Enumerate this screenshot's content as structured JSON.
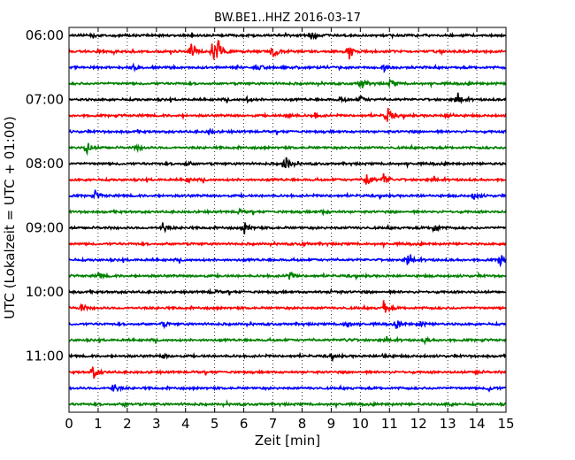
{
  "chart_data": {
    "type": "line",
    "title": "BW.BE1..HHZ 2016-03-17",
    "xlabel": "Zeit  [min]",
    "ylabel": "UTC (Lokalzeit = UTC + 01:00)",
    "xlim": [
      0,
      15
    ],
    "x_ticks": [
      "0",
      "1",
      "2",
      "3",
      "4",
      "5",
      "6",
      "7",
      "8",
      "9",
      "10",
      "11",
      "12",
      "13",
      "14",
      "15"
    ],
    "y_tick_labels": [
      "06:00",
      "07:00",
      "08:00",
      "09:00",
      "10:00",
      "11:00"
    ],
    "grid": "vertical dotted",
    "trace_colors": [
      "#000000",
      "#ff0000",
      "#0000ff",
      "#008000"
    ],
    "traces": [
      {
        "start": "06:00",
        "events": [
          [
            0.8,
            0.3
          ],
          [
            8.3,
            0.5
          ]
        ]
      },
      {
        "start": "06:15",
        "events": [
          [
            4.2,
            1.2
          ],
          [
            4.9,
            1.6
          ],
          [
            5.1,
            1.4
          ],
          [
            7.0,
            0.9
          ],
          [
            9.6,
            1.0
          ]
        ]
      },
      {
        "start": "06:30",
        "events": [
          [
            2.2,
            0.3
          ],
          [
            6.5,
            0.3
          ],
          [
            10.8,
            0.4
          ]
        ]
      },
      {
        "start": "06:45",
        "events": [
          [
            10.0,
            0.9
          ],
          [
            11.0,
            0.5
          ]
        ]
      },
      {
        "start": "07:00",
        "events": [
          [
            6.1,
            0.3
          ],
          [
            9.3,
            0.4
          ],
          [
            10.0,
            0.4
          ],
          [
            13.3,
            0.6
          ]
        ]
      },
      {
        "start": "07:15",
        "events": [
          [
            7.5,
            0.5
          ],
          [
            8.4,
            0.4
          ],
          [
            10.9,
            1.4
          ],
          [
            13.0,
            0.4
          ]
        ]
      },
      {
        "start": "07:30",
        "events": [
          [
            4.8,
            0.3
          ]
        ]
      },
      {
        "start": "07:45",
        "events": [
          [
            0.6,
            0.9
          ],
          [
            2.3,
            0.4
          ]
        ]
      },
      {
        "start": "08:00",
        "events": [
          [
            4.0,
            0.3
          ],
          [
            7.4,
            1.2
          ]
        ]
      },
      {
        "start": "08:15",
        "events": [
          [
            4.0,
            0.4
          ],
          [
            10.2,
            1.1
          ],
          [
            10.8,
            0.9
          ]
        ]
      },
      {
        "start": "08:30",
        "events": [
          [
            0.9,
            0.6
          ],
          [
            13.9,
            0.5
          ]
        ]
      },
      {
        "start": "08:45",
        "events": [
          [
            5.8,
            0.3
          ],
          [
            8.7,
            0.3
          ]
        ]
      },
      {
        "start": "09:00",
        "events": [
          [
            3.2,
            0.7
          ],
          [
            6.0,
            0.9
          ],
          [
            12.5,
            0.8
          ]
        ]
      },
      {
        "start": "09:15",
        "events": [
          [
            8.0,
            0.2
          ]
        ]
      },
      {
        "start": "09:30",
        "events": [
          [
            11.6,
            0.6
          ],
          [
            14.8,
            1.0
          ]
        ]
      },
      {
        "start": "09:45",
        "events": [
          [
            1.0,
            0.4
          ],
          [
            7.5,
            0.9
          ]
        ]
      },
      {
        "start": "10:00",
        "events": [
          [
            4.9,
            0.3
          ],
          [
            9.0,
            0.2
          ]
        ]
      },
      {
        "start": "10:15",
        "events": [
          [
            0.4,
            0.6
          ],
          [
            10.8,
            0.9
          ]
        ]
      },
      {
        "start": "10:30",
        "events": [
          [
            3.2,
            0.4
          ],
          [
            9.5,
            0.6
          ],
          [
            11.2,
            0.6
          ],
          [
            12.0,
            0.4
          ]
        ]
      },
      {
        "start": "10:45",
        "events": [
          [
            9.5,
            0.3
          ],
          [
            12.2,
            0.3
          ]
        ]
      },
      {
        "start": "11:00",
        "events": [
          [
            3.2,
            0.3
          ],
          [
            9.0,
            0.3
          ],
          [
            10.8,
            0.3
          ]
        ]
      },
      {
        "start": "11:15",
        "events": [
          [
            0.8,
            1.1
          ],
          [
            14.0,
            0.3
          ]
        ]
      },
      {
        "start": "11:30",
        "events": [
          [
            1.5,
            0.8
          ],
          [
            14.4,
            0.4
          ]
        ]
      },
      {
        "start": "11:45",
        "events": [
          [
            1.9,
            0.2
          ],
          [
            13.0,
            0.2
          ]
        ]
      }
    ]
  }
}
